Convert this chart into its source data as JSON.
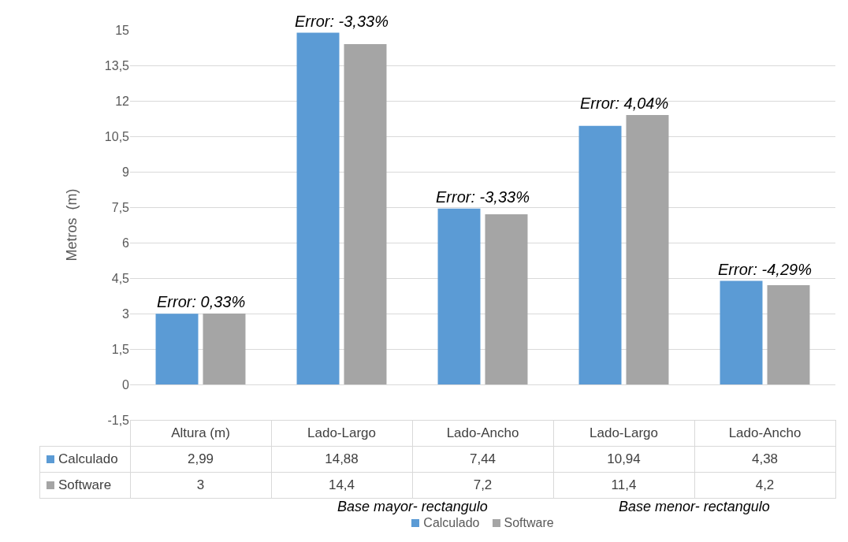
{
  "chart_data": {
    "type": "bar",
    "ylabel": "Metros  (m)",
    "categories": [
      "Altura (m)",
      "Lado-Largo",
      "Lado-Ancho",
      "Lado-Largo",
      "Lado-Ancho"
    ],
    "series": [
      {
        "name": "Calculado",
        "color": "#5b9bd5",
        "values": [
          2.99,
          14.88,
          7.44,
          10.94,
          4.38
        ],
        "value_labels": [
          "2,99",
          "14,88",
          "7,44",
          "10,94",
          "4,38"
        ]
      },
      {
        "name": "Software",
        "color": "#a5a5a5",
        "values": [
          3,
          14.4,
          7.2,
          11.4,
          4.2
        ],
        "value_labels": [
          "3",
          "14,4",
          "7,2",
          "11,4",
          "4,2"
        ]
      }
    ],
    "ylim": [
      -1.5,
      15
    ],
    "yticks": [
      {
        "value": -1.5,
        "label": "-1,5"
      },
      0,
      {
        "value": 1.5,
        "label": "1,5"
      },
      3,
      {
        "value": 4.5,
        "label": "4,5"
      },
      6,
      {
        "value": 7.5,
        "label": "7,5"
      },
      9,
      {
        "value": 10.5,
        "label": "10,5"
      },
      12,
      {
        "value": 13.5,
        "label": "13,5"
      },
      15
    ],
    "grid": "y",
    "legend": "bottom",
    "annotations": [
      {
        "text": "Error: 0,33%",
        "x": "Altura (m)",
        "y": 3
      },
      {
        "text": "Error: -3,33%",
        "x": "Lado-Largo",
        "y": 14.88
      },
      {
        "text": "Error: -3,33%",
        "x": "Lado-Ancho",
        "y": 7.44
      },
      {
        "text": "Error: 4,04%",
        "y": 11.4
      },
      {
        "text": "Error: -4,29%",
        "y": 4.38
      },
      "Base mayor- rectangulo",
      "Base menor- rectangulo"
    ]
  }
}
